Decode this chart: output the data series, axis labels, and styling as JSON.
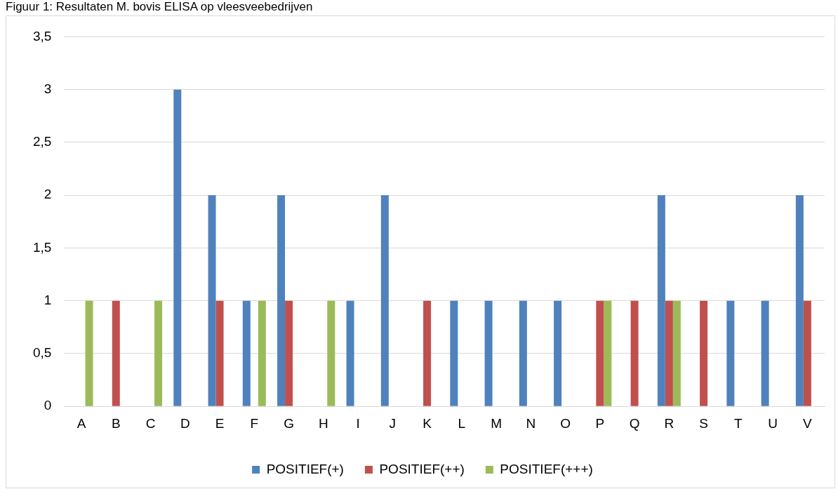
{
  "chart_data": {
    "type": "bar",
    "title": "Figuur 1: Resultaten M. bovis ELISA op vleesveebedrijven",
    "categories": [
      "A",
      "B",
      "C",
      "D",
      "E",
      "F",
      "G",
      "H",
      "I",
      "J",
      "K",
      "L",
      "M",
      "N",
      "O",
      "P",
      "Q",
      "R",
      "S",
      "T",
      "U",
      "V"
    ],
    "series": [
      {
        "name": "POSITIEF(+)",
        "color": "#4f81bd",
        "values": [
          0,
          0,
          0,
          3,
          2,
          1,
          2,
          0,
          1,
          2,
          0,
          1,
          1,
          1,
          1,
          0,
          0,
          2,
          0,
          1,
          1,
          2
        ]
      },
      {
        "name": "POSITIEF(++)",
        "color": "#c0504d",
        "values": [
          0,
          1,
          0,
          0,
          1,
          0,
          1,
          0,
          0,
          0,
          1,
          0,
          0,
          0,
          0,
          1,
          1,
          1,
          1,
          0,
          0,
          1
        ]
      },
      {
        "name": "POSITIEF(+++)",
        "color": "#9bbb59",
        "values": [
          1,
          0,
          1,
          0,
          0,
          1,
          0,
          1,
          0,
          0,
          0,
          0,
          0,
          0,
          0,
          1,
          0,
          1,
          0,
          0,
          0,
          0
        ]
      }
    ],
    "ylim": [
      0,
      3.5
    ],
    "yticks": [
      0,
      {
        "value": 0.5,
        "label": "0,5"
      },
      1,
      {
        "value": 1.5,
        "label": "1,5"
      },
      2,
      {
        "value": 2.5,
        "label": "2,5"
      },
      3,
      {
        "value": 3.5,
        "label": "3,5"
      }
    ],
    "grid": "y",
    "legend": "bottom"
  }
}
